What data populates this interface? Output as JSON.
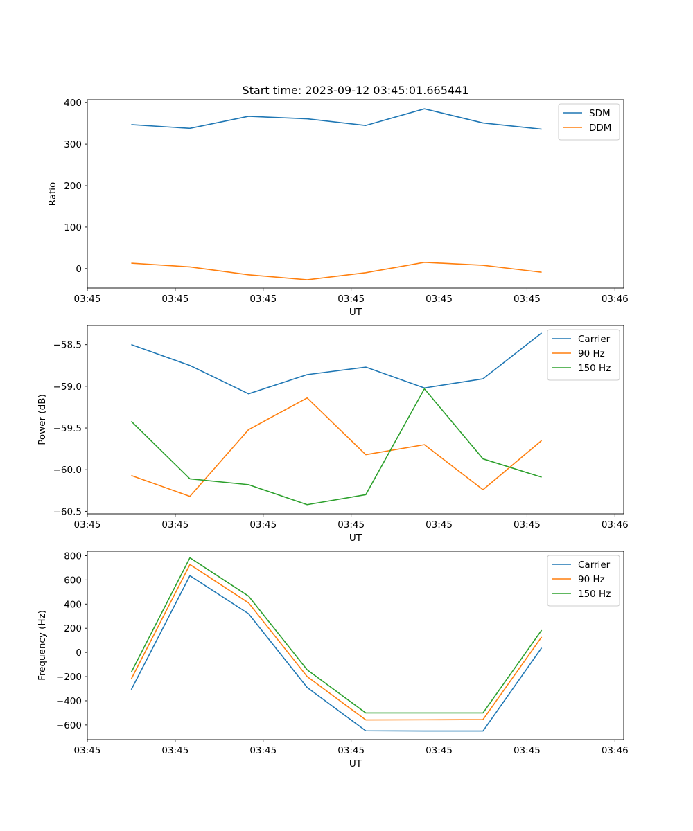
{
  "colors": {
    "c0": "#1f77b4",
    "c1": "#ff7f0e",
    "c2": "#2ca02c"
  },
  "chart_data": [
    {
      "type": "line",
      "title": "Start time: 2023-09-12 03:45:01.665441",
      "xlabel": "UT",
      "ylabel": "Ratio",
      "x": [
        0,
        1,
        2,
        3,
        4,
        5,
        6,
        7
      ],
      "xlim": [
        -0.75,
        8.4
      ],
      "xticks": [
        -0.75,
        0.75,
        2.25,
        3.75,
        5.25,
        6.75,
        8.25
      ],
      "xtick_labels": [
        "03:45",
        "03:45",
        "03:45",
        "03:45",
        "03:45",
        "03:45",
        "03:46"
      ],
      "ylim": [
        -47,
        407
      ],
      "yticks": [
        0,
        100,
        200,
        300,
        400
      ],
      "ytick_labels": [
        "0",
        "100",
        "200",
        "300",
        "400"
      ],
      "legend_position": "top-right",
      "series": [
        {
          "name": "SDM",
          "color": "#1f77b4",
          "values": [
            347,
            338,
            367,
            361,
            345,
            385,
            351,
            336
          ]
        },
        {
          "name": "DDM",
          "color": "#ff7f0e",
          "values": [
            13,
            4,
            -15,
            -27,
            -10,
            15,
            8,
            -9
          ]
        }
      ]
    },
    {
      "type": "line",
      "title": "",
      "xlabel": "UT",
      "ylabel": "Power (dB)",
      "x": [
        0,
        1,
        2,
        3,
        4,
        5,
        6,
        7
      ],
      "xlim": [
        -0.75,
        8.4
      ],
      "xticks": [
        -0.75,
        0.75,
        2.25,
        3.75,
        5.25,
        6.75,
        8.25
      ],
      "xtick_labels": [
        "03:45",
        "03:45",
        "03:45",
        "03:45",
        "03:45",
        "03:45",
        "03:46"
      ],
      "ylim": [
        -60.53,
        -58.27
      ],
      "yticks": [
        -58.5,
        -59.0,
        -59.5,
        -60.0,
        -60.5
      ],
      "ytick_labels": [
        "−58.5",
        "−59.0",
        "−59.5",
        "−60.0",
        "−60.5"
      ],
      "legend_position": "top-right",
      "series": [
        {
          "name": "Carrier",
          "color": "#1f77b4",
          "values": [
            -58.5,
            -58.75,
            -59.09,
            -58.86,
            -58.77,
            -59.02,
            -58.91,
            -58.36
          ]
        },
        {
          "name": "90 Hz",
          "color": "#ff7f0e",
          "values": [
            -60.07,
            -60.32,
            -59.52,
            -59.14,
            -59.82,
            -59.7,
            -60.24,
            -59.65
          ]
        },
        {
          "name": "150 Hz",
          "color": "#2ca02c",
          "values": [
            -59.42,
            -60.11,
            -60.18,
            -60.42,
            -60.3,
            -59.03,
            -59.87,
            -60.09
          ]
        }
      ]
    },
    {
      "type": "line",
      "title": "",
      "xlabel": "UT",
      "ylabel": "Frequency (Hz)",
      "x": [
        0,
        1,
        2,
        3,
        4,
        5,
        6,
        7
      ],
      "xlim": [
        -0.75,
        8.4
      ],
      "xticks": [
        -0.75,
        0.75,
        2.25,
        3.75,
        5.25,
        6.75,
        8.25
      ],
      "xtick_labels": [
        "03:45",
        "03:45",
        "03:45",
        "03:45",
        "03:45",
        "03:45",
        "03:46"
      ],
      "ylim": [
        -721,
        837
      ],
      "yticks": [
        800,
        600,
        400,
        200,
        0,
        -200,
        -400,
        -600
      ],
      "ytick_labels": [
        "800",
        "600",
        "400",
        "200",
        "0",
        "−200",
        "−400",
        "−600"
      ],
      "legend_position": "top-right",
      "series": [
        {
          "name": "Carrier",
          "color": "#1f77b4",
          "values": [
            -308,
            635,
            320,
            -290,
            -648,
            -650,
            -650,
            38
          ]
        },
        {
          "name": "90 Hz",
          "color": "#ff7f0e",
          "values": [
            -220,
            727,
            410,
            -200,
            -558,
            -557,
            -555,
            128
          ]
        },
        {
          "name": "150 Hz",
          "color": "#2ca02c",
          "values": [
            -164,
            783,
            466,
            -144,
            -500,
            -500,
            -500,
            184
          ]
        }
      ]
    }
  ]
}
